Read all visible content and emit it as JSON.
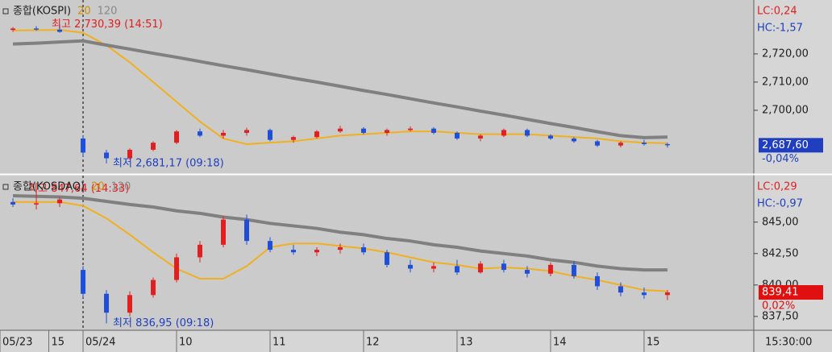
{
  "chart_data": [
    {
      "type": "candlestick",
      "title": "종합(KOSPI)",
      "x": [
        -45,
        -30,
        -15,
        0,
        15,
        30,
        45,
        60,
        75,
        90,
        105,
        120,
        135,
        150,
        165,
        180,
        195,
        210,
        225,
        240,
        255,
        270,
        285,
        300,
        315,
        330,
        345,
        360,
        375
      ],
      "open": [
        2728.5,
        2729,
        2728.6,
        2690,
        2685,
        2683,
        2686,
        2688.5,
        2692.5,
        2691,
        2692,
        2693,
        2689.5,
        2690.5,
        2692.5,
        2693.5,
        2692,
        2693,
        2693.5,
        2692,
        2690,
        2691,
        2693,
        2691,
        2690,
        2689,
        2687.5,
        2688.5,
        2688
      ],
      "high": [
        2729.5,
        2729.8,
        2730.39,
        2691,
        2686,
        2686.5,
        2689,
        2693,
        2693.5,
        2693,
        2693.8,
        2693.5,
        2691,
        2693,
        2694.5,
        2694,
        2693.5,
        2694.3,
        2694,
        2692.5,
        2691.5,
        2693.5,
        2693.5,
        2691.5,
        2690.5,
        2689.5,
        2689,
        2689.5,
        2688.5
      ],
      "low": [
        2727.8,
        2728.2,
        2727.5,
        2683.5,
        2681.17,
        2682.5,
        2685.5,
        2688,
        2690.5,
        2690,
        2691,
        2689,
        2688.5,
        2690,
        2692,
        2691.5,
        2691,
        2692.5,
        2691.5,
        2689.5,
        2689,
        2690.5,
        2690.5,
        2689.5,
        2688.5,
        2687,
        2686.8,
        2687.5,
        2686.8
      ],
      "close": [
        2729,
        2728.6,
        2727.8,
        2685,
        2683,
        2686,
        2688.5,
        2692.5,
        2691,
        2692,
        2693,
        2689.5,
        2690.5,
        2692.5,
        2693.5,
        2692,
        2693,
        2693.5,
        2692,
        2690,
        2691,
        2693,
        2691,
        2690,
        2689,
        2687.5,
        2688.5,
        2688,
        2687.6
      ],
      "series": [
        {
          "name": "20",
          "color": "#f0b020",
          "values": [
            2728.3,
            2728.4,
            2728.5,
            2727.5,
            2723,
            2717,
            2710,
            2703,
            2696,
            2690,
            2688,
            2688.5,
            2689,
            2690,
            2691,
            2691.5,
            2692,
            2692.5,
            2692.5,
            2692,
            2691.5,
            2691.5,
            2691.5,
            2691,
            2690.5,
            2690,
            2689,
            2688.5,
            2688.3
          ]
        },
        {
          "name": "120",
          "color": "#808080",
          "values": [
            2723.5,
            2723.8,
            2724.2,
            2724.6,
            2723.1,
            2721.7,
            2720.2,
            2718.8,
            2717.3,
            2715.8,
            2714.4,
            2712.9,
            2711.4,
            2710,
            2708.5,
            2707,
            2705.6,
            2704.1,
            2702.6,
            2701.2,
            2699.7,
            2698.3,
            2696.8,
            2695.3,
            2693.9,
            2692.4,
            2691,
            2690.3,
            2690.5
          ]
        }
      ],
      "up_color": "#e02020",
      "down_color": "#1f4fd8",
      "xlim": [
        -53.3,
        430.4
      ],
      "ylim": [
        2677.7,
        2739.1
      ],
      "yticks": [
        {
          "value": 2700,
          "label": "2,700,00"
        },
        {
          "value": 2710,
          "label": "2,710,00"
        },
        {
          "value": 2720,
          "label": "2,720,00"
        }
      ],
      "high_label": "최고 2,730,39 (14:51)",
      "low_label": "최저 2,681,17 (09:18)",
      "lc_label": "LC:0,24",
      "hc_label": "HC:-1,57",
      "last_label": "2,687,60",
      "change_label": "-0,04%",
      "last_color": "#1f3fc0"
    },
    {
      "type": "candlestick",
      "title": "종합(KOSDAQ)",
      "x": [
        -45,
        -30,
        -15,
        0,
        15,
        30,
        45,
        60,
        75,
        90,
        105,
        120,
        135,
        150,
        165,
        180,
        195,
        210,
        225,
        240,
        255,
        270,
        285,
        300,
        315,
        330,
        345,
        360,
        375
      ],
      "open": [
        846.6,
        846.4,
        846.5,
        841.2,
        839.3,
        837.8,
        839.2,
        840.4,
        842.2,
        843.2,
        845.2,
        843.5,
        842.8,
        842.6,
        842.8,
        843,
        842.6,
        841.6,
        841.3,
        841.5,
        841,
        841.7,
        841.2,
        840.9,
        841.6,
        840.7,
        839.9,
        839.4,
        839.2
      ],
      "high": [
        846.9,
        847.64,
        847,
        841.5,
        839.6,
        839.5,
        840.6,
        842.5,
        843.5,
        845.5,
        845.6,
        843.8,
        843.2,
        843,
        843.3,
        843.3,
        842.8,
        842,
        841.8,
        842,
        841.9,
        842,
        841.5,
        841.8,
        841.9,
        841,
        840.2,
        839.8,
        839.6
      ],
      "low": [
        846.2,
        846,
        846.2,
        839,
        836.95,
        837.5,
        839,
        840.2,
        841.8,
        843,
        843.2,
        842.6,
        842.4,
        842.3,
        842.5,
        842.4,
        841.4,
        841,
        841,
        840.8,
        840.9,
        841,
        840.6,
        840.7,
        840.5,
        839.6,
        839.1,
        838.9,
        838.8
      ],
      "close": [
        846.4,
        846.5,
        846.8,
        839.3,
        837.8,
        839.2,
        840.4,
        842.2,
        843.2,
        845.2,
        843.5,
        842.8,
        842.6,
        842.8,
        843,
        842.6,
        841.6,
        841.3,
        841.5,
        841,
        841.7,
        841.2,
        840.9,
        841.6,
        840.7,
        839.9,
        839.4,
        839.2,
        839.41
      ],
      "series": [
        {
          "name": "20",
          "color": "#f0b020",
          "values": [
            846.6,
            846.6,
            846.6,
            846.3,
            845.3,
            844,
            842.6,
            841.3,
            840.5,
            840.5,
            841.5,
            843,
            843.3,
            843.3,
            843.1,
            842.9,
            842.6,
            842.2,
            841.8,
            841.6,
            841.3,
            841.4,
            841.3,
            841.1,
            840.7,
            840.4,
            840,
            839.6,
            839.5
          ]
        },
        {
          "name": "120",
          "color": "#808080",
          "values": [
            847.1,
            847.05,
            847,
            846.9,
            846.65,
            846.4,
            846.2,
            845.9,
            845.7,
            845.4,
            845.2,
            844.9,
            844.7,
            844.5,
            844.2,
            844,
            843.7,
            843.5,
            843.2,
            843,
            842.7,
            842.5,
            842.3,
            842,
            841.8,
            841.5,
            841.3,
            841.2,
            841.2
          ]
        }
      ],
      "up_color": "#e02020",
      "down_color": "#1f4fd8",
      "xlim": [
        -53.3,
        430.4
      ],
      "ylim": [
        836.4,
        848.7
      ],
      "yticks": [
        {
          "value": 837.5,
          "label": "837,50"
        },
        {
          "value": 840,
          "label": "840,00"
        },
        {
          "value": 842.5,
          "label": "842,50"
        },
        {
          "value": 845,
          "label": "845,00"
        }
      ],
      "xticks": [
        {
          "value": -53.3,
          "label": "05/23"
        },
        {
          "value": -22,
          "label": "15"
        },
        {
          "value": 0,
          "label": "05/24"
        },
        {
          "value": 60,
          "label": "10"
        },
        {
          "value": 120,
          "label": "11"
        },
        {
          "value": 180,
          "label": "12"
        },
        {
          "value": 240,
          "label": "13"
        },
        {
          "value": 300,
          "label": "14"
        },
        {
          "value": 360,
          "label": "15"
        }
      ],
      "x_end_label": "15:30:00",
      "high_label": "최고 847,64 (14:33)",
      "low_label": "최저 836,95 (09:18)",
      "lc_label": "LC:0,29",
      "hc_label": "HC:-0,97",
      "last_label": "839,41",
      "change_label": "0,02%",
      "last_color": "#e01010"
    }
  ]
}
